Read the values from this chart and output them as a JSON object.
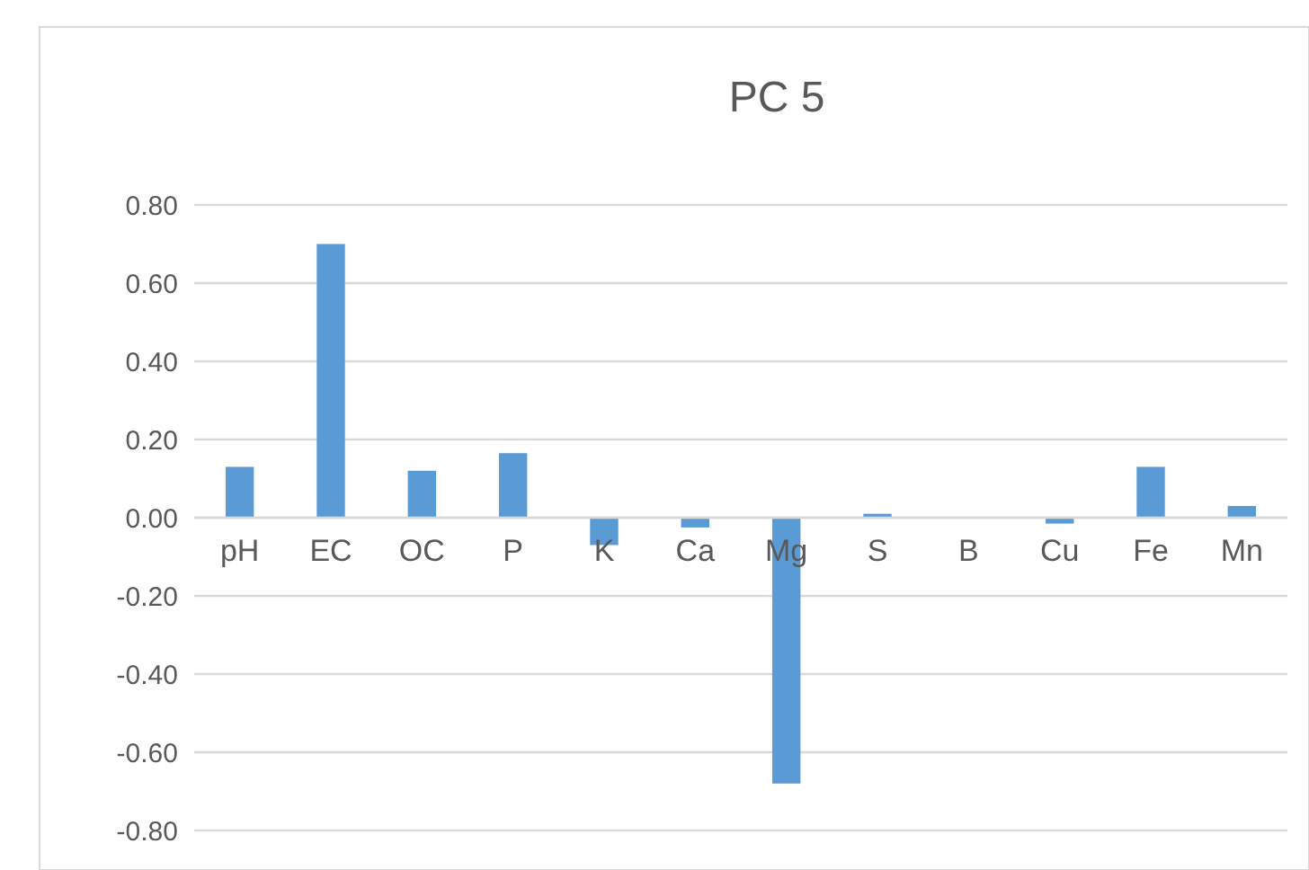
{
  "chart_data": {
    "type": "bar",
    "title": "PC 5",
    "categories": [
      "pH",
      "EC",
      "OC",
      "P",
      "K",
      "Ca",
      "Mg",
      "S",
      "B",
      "Cu",
      "Fe",
      "Mn"
    ],
    "values": [
      0.13,
      0.7,
      0.12,
      0.165,
      -0.07,
      -0.025,
      -0.68,
      0.01,
      0,
      -0.015,
      0.13,
      0.03
    ],
    "color": "#5b9bd5",
    "ylim": [
      -0.8,
      0.8
    ],
    "yticks": [
      {
        "value": -0.8,
        "label": "-0.80"
      },
      {
        "value": -0.6,
        "label": "-0.60"
      },
      {
        "value": -0.4,
        "label": "-0.40"
      },
      {
        "value": -0.2,
        "label": "-0.20"
      },
      {
        "value": 0,
        "label": "0.00"
      },
      {
        "value": 0.2,
        "label": "0.20"
      },
      {
        "value": 0.4,
        "label": "0.40"
      },
      {
        "value": 0.6,
        "label": "0.60"
      },
      {
        "value": 0.8,
        "label": "0.80"
      }
    ],
    "grid": "y"
  }
}
